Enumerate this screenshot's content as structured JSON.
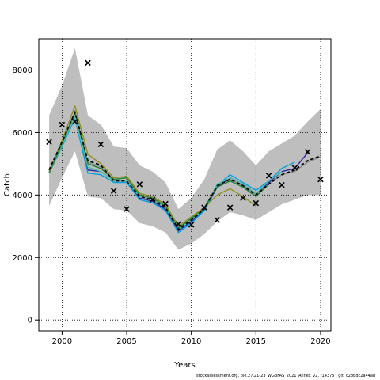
{
  "footer_text": "stockassessment.org, ple.27.21-23_WGBFAS_2021_Annex_v2, r14375 , git: c28bdc2a44ad",
  "chart_data": {
    "type": "line",
    "xlabel": "Years",
    "ylabel": "Catch",
    "xlim": [
      1998.2,
      2020.8
    ],
    "ylim": [
      -350,
      9000
    ],
    "xticks": [
      2000,
      2005,
      2010,
      2015,
      2020
    ],
    "yticks": [
      0,
      2000,
      4000,
      6000,
      8000
    ],
    "grid": true,
    "band": {
      "color": "#bebebe",
      "x": [
        1999,
        2000,
        2001,
        2002,
        2003,
        2004,
        2005,
        2006,
        2007,
        2008,
        2009,
        2010,
        2011,
        2012,
        2013,
        2014,
        2015,
        2016,
        2017,
        2018,
        2019,
        2020
      ],
      "upper": [
        6550,
        7500,
        8700,
        6550,
        6250,
        5550,
        5500,
        4950,
        4750,
        4400,
        3550,
        3900,
        4500,
        5450,
        5750,
        5400,
        4950,
        5400,
        5650,
        5900,
        6350,
        6750
      ],
      "lower": [
        3650,
        4550,
        5400,
        3950,
        3900,
        3550,
        3500,
        3100,
        3000,
        2800,
        2250,
        2450,
        2750,
        3150,
        3450,
        3350,
        3200,
        3450,
        3700,
        3850,
        4000,
        4000
      ]
    },
    "series": [
      {
        "color": "#000000",
        "dashed": true,
        "x": [
          1999,
          2000,
          2001,
          2002,
          2003,
          2004,
          2005,
          2006,
          2007,
          2008,
          2009,
          2010,
          2011,
          2012,
          2013,
          2014,
          2015,
          2016,
          2017,
          2018,
          2019,
          2020
        ],
        "values": [
          4800,
          5700,
          6650,
          5100,
          4950,
          4450,
          4450,
          3950,
          3850,
          3600,
          2900,
          3200,
          3550,
          4300,
          4500,
          4300,
          4000,
          4350,
          4650,
          4800,
          5100,
          5250
        ]
      },
      {
        "color": "#8a8a8a",
        "dashed": false,
        "x": [
          1999,
          2000,
          2001,
          2002,
          2003,
          2004,
          2005,
          2006,
          2007,
          2008,
          2009,
          2010,
          2011,
          2012,
          2013,
          2014,
          2015,
          2016,
          2017,
          2018,
          2019,
          2020
        ],
        "values": [
          4750,
          5650,
          6600,
          5050,
          4900,
          4450,
          4450,
          3950,
          3850,
          3600,
          2900,
          3200,
          3550,
          4300,
          4500,
          4300,
          4000,
          4350,
          4650,
          4750,
          5050,
          5220
        ]
      },
      {
        "color": "#2b2b9e",
        "dashed": false,
        "x": [
          1999,
          2000,
          2001,
          2002,
          2003,
          2004,
          2005,
          2006,
          2007,
          2008,
          2009,
          2010,
          2011,
          2012,
          2013,
          2014,
          2015,
          2016,
          2017,
          2018,
          2019
        ],
        "values": [
          4700,
          5600,
          6500,
          4800,
          4750,
          4450,
          4450,
          3900,
          3800,
          3550,
          2850,
          3150,
          3500,
          4250,
          4550,
          4350,
          4050,
          4400,
          4750,
          4850,
          5350
        ]
      },
      {
        "color": "#00a0e0",
        "dashed": false,
        "x": [
          1999,
          2000,
          2001,
          2002,
          2003,
          2004,
          2005,
          2006,
          2007,
          2008,
          2009,
          2010,
          2011,
          2012,
          2013,
          2014,
          2015,
          2016,
          2017,
          2018
        ],
        "values": [
          4700,
          5550,
          6450,
          4700,
          4650,
          4400,
          4400,
          3850,
          3750,
          3500,
          2800,
          3100,
          3500,
          4300,
          4650,
          4400,
          4150,
          4450,
          4850,
          5050
        ]
      },
      {
        "color": "#54c1a8",
        "dashed": false,
        "x": [
          1999,
          2000,
          2001,
          2002,
          2003,
          2004,
          2005,
          2006,
          2007,
          2008,
          2009,
          2010,
          2011,
          2012,
          2013,
          2014,
          2015,
          2016,
          2017
        ],
        "values": [
          4700,
          5600,
          6500,
          4900,
          4750,
          4450,
          4450,
          3950,
          3850,
          3600,
          2900,
          3200,
          3550,
          4350,
          4550,
          4350,
          4050,
          4450,
          4750
        ]
      },
      {
        "color": "#1e7e34",
        "dashed": false,
        "x": [
          1999,
          2000,
          2001,
          2002,
          2003,
          2004,
          2005,
          2006,
          2007,
          2008,
          2009,
          2010,
          2011,
          2012,
          2013,
          2014,
          2015,
          2016
        ],
        "values": [
          4700,
          5650,
          6650,
          5000,
          4850,
          4500,
          4550,
          4000,
          3900,
          3650,
          2950,
          3250,
          3600,
          4250,
          4450,
          4250,
          3950,
          4350
        ]
      },
      {
        "color": "#8f8f1f",
        "dashed": false,
        "x": [
          1999,
          2000,
          2001,
          2002,
          2003,
          2004,
          2005,
          2006,
          2007,
          2008,
          2009,
          2010,
          2011,
          2012,
          2013,
          2014,
          2015
        ],
        "values": [
          4750,
          5750,
          6850,
          5300,
          5000,
          4550,
          4600,
          4050,
          3950,
          3700,
          3000,
          3300,
          3600,
          4000,
          4200,
          3950,
          3650
        ]
      }
    ],
    "observations": {
      "marker": "x",
      "x": [
        1999,
        2000,
        2001,
        2002,
        2003,
        2004,
        2005,
        2006,
        2007,
        2008,
        2009,
        2010,
        2011,
        2012,
        2013,
        2014,
        2015,
        2016,
        2017,
        2018,
        2019,
        2020
      ],
      "values": [
        5700,
        6250,
        6350,
        8230,
        5620,
        4130,
        3550,
        4340,
        3850,
        3720,
        3070,
        3050,
        3600,
        3200,
        3600,
        3900,
        3740,
        4620,
        4320,
        4870,
        5380,
        4500
      ]
    }
  }
}
